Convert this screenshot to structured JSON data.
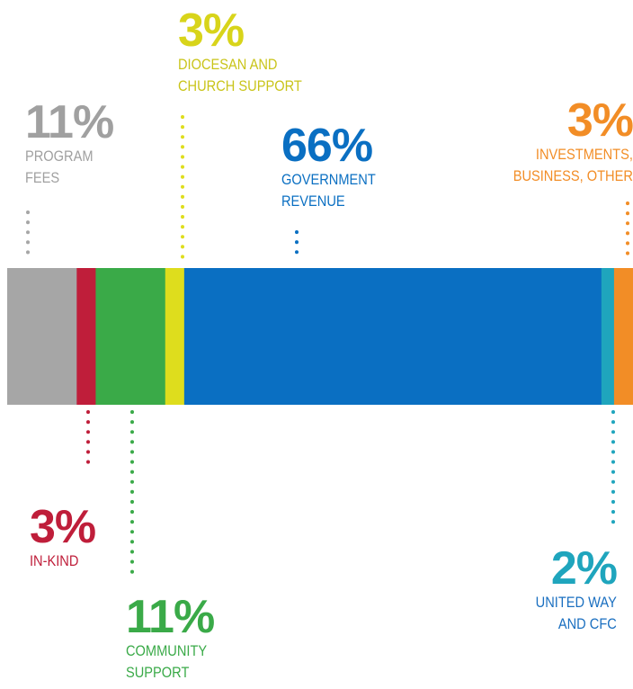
{
  "chart_data": {
    "type": "bar",
    "orientation": "horizontal-stacked",
    "unit": "%",
    "segments": [
      {
        "value": 11,
        "value_label": "11%",
        "name": "PROGRAM FEES",
        "color": "#a6a6a6"
      },
      {
        "value": 3,
        "value_label": "3%",
        "name": "IN-KIND",
        "color": "#bf1e3a"
      },
      {
        "value": 11,
        "value_label": "11%",
        "name": "COMMUNITY SUPPORT",
        "color": "#3aaa48"
      },
      {
        "value": 3,
        "value_label": "3%",
        "name": "DIOCESAN AND CHURCH SUPPORT",
        "color": "#dedd1d"
      },
      {
        "value": 66,
        "value_label": "66%",
        "name": "GOVERNMENT REVENUE",
        "color": "#0a6fc2"
      },
      {
        "value": 2,
        "value_label": "2%",
        "name": "UNITED WAY AND CFC",
        "color": "#1fa5bd"
      },
      {
        "value": 3,
        "value_label": "3%",
        "name": "INVESTMENTS, BUSINESS, OTHER",
        "color": "#f28d26"
      }
    ]
  },
  "labels": {
    "program_fees": {
      "pct": "11%",
      "line1": "PROGRAM",
      "line2": "FEES"
    },
    "in_kind": {
      "pct": "3%",
      "line1": "IN-KIND"
    },
    "community": {
      "pct": "11%",
      "line1": "COMMUNITY",
      "line2": "SUPPORT"
    },
    "diocesan": {
      "pct": "3%",
      "line1": "DIOCESAN AND",
      "line2": "CHURCH SUPPORT"
    },
    "government": {
      "pct": "66%",
      "line1": "GOVERNMENT",
      "line2": "REVENUE"
    },
    "united_way": {
      "pct": "2%",
      "line1": "UNITED WAY",
      "line2": "AND CFC"
    },
    "investments": {
      "pct": "3%",
      "line1": "INVESTMENTS,",
      "line2": "BUSINESS, OTHER"
    }
  },
  "colors": {
    "program_fees_text": "#a0a0a0",
    "in_kind_text": "#bf1e3a",
    "community_text": "#3aaa48",
    "diocesan_text": "#d8d41a",
    "government_text": "#0a6fc2",
    "united_way_text": "#1fa5bd",
    "investments_text": "#f28d26"
  }
}
